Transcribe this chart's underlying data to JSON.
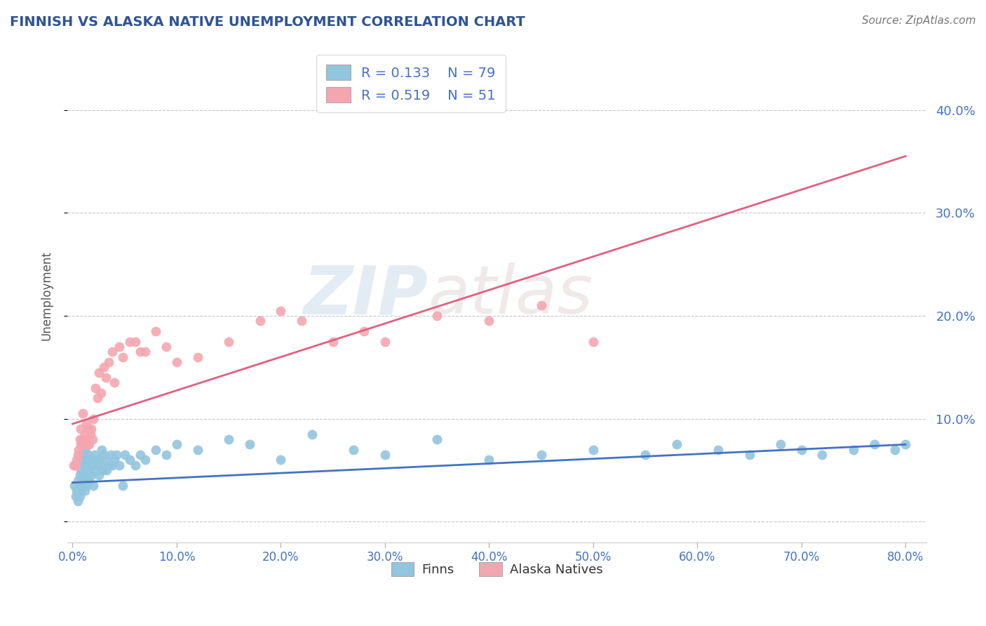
{
  "title": "FINNISH VS ALASKA NATIVE UNEMPLOYMENT CORRELATION CHART",
  "source": "Source: ZipAtlas.com",
  "ylabel": "Unemployment",
  "xlim": [
    -0.005,
    0.82
  ],
  "ylim": [
    -0.02,
    0.46
  ],
  "xticks": [
    0.0,
    0.1,
    0.2,
    0.3,
    0.4,
    0.5,
    0.6,
    0.7,
    0.8
  ],
  "yticks": [
    0.0,
    0.1,
    0.2,
    0.3,
    0.4
  ],
  "ytick_labels": [
    "",
    "10.0%",
    "20.0%",
    "30.0%",
    "40.0%"
  ],
  "xtick_labels": [
    "0.0%",
    "10.0%",
    "20.0%",
    "30.0%",
    "40.0%",
    "50.0%",
    "60.0%",
    "70.0%",
    "80.0%"
  ],
  "finns_color": "#92c5de",
  "alaska_color": "#f4a6b0",
  "finns_R": 0.133,
  "finns_N": 79,
  "alaska_R": 0.519,
  "alaska_N": 51,
  "finns_line_color": "#4472c4",
  "alaska_line_color": "#e06080",
  "watermark_zip": "ZIP",
  "watermark_atlas": "atlas",
  "title_color": "#2F5496",
  "axis_color": "#4472c4",
  "legend_text_color": "#333333",
  "grid_color": "#c8c8c8",
  "background_color": "#ffffff",
  "finns_line_y_start": 0.038,
  "finns_line_y_end": 0.075,
  "alaska_line_y_start": 0.095,
  "alaska_line_y_end": 0.355,
  "finns_x": [
    0.002,
    0.003,
    0.004,
    0.005,
    0.005,
    0.006,
    0.007,
    0.007,
    0.008,
    0.008,
    0.009,
    0.009,
    0.01,
    0.01,
    0.011,
    0.011,
    0.012,
    0.012,
    0.013,
    0.013,
    0.014,
    0.015,
    0.015,
    0.016,
    0.016,
    0.017,
    0.018,
    0.019,
    0.02,
    0.02,
    0.021,
    0.022,
    0.023,
    0.024,
    0.025,
    0.026,
    0.027,
    0.028,
    0.029,
    0.03,
    0.032,
    0.033,
    0.035,
    0.037,
    0.038,
    0.04,
    0.042,
    0.045,
    0.048,
    0.05,
    0.055,
    0.06,
    0.065,
    0.07,
    0.08,
    0.09,
    0.1,
    0.12,
    0.15,
    0.17,
    0.2,
    0.23,
    0.27,
    0.3,
    0.35,
    0.4,
    0.45,
    0.5,
    0.55,
    0.58,
    0.62,
    0.65,
    0.68,
    0.7,
    0.72,
    0.75,
    0.77,
    0.79,
    0.8
  ],
  "finns_y": [
    0.035,
    0.025,
    0.03,
    0.02,
    0.04,
    0.03,
    0.025,
    0.045,
    0.03,
    0.05,
    0.035,
    0.06,
    0.04,
    0.065,
    0.045,
    0.055,
    0.03,
    0.07,
    0.035,
    0.055,
    0.05,
    0.045,
    0.065,
    0.04,
    0.06,
    0.055,
    0.045,
    0.06,
    0.035,
    0.055,
    0.065,
    0.05,
    0.06,
    0.055,
    0.045,
    0.06,
    0.055,
    0.07,
    0.05,
    0.065,
    0.06,
    0.05,
    0.055,
    0.065,
    0.055,
    0.06,
    0.065,
    0.055,
    0.035,
    0.065,
    0.06,
    0.055,
    0.065,
    0.06,
    0.07,
    0.065,
    0.075,
    0.07,
    0.08,
    0.075,
    0.06,
    0.085,
    0.07,
    0.065,
    0.08,
    0.06,
    0.065,
    0.07,
    0.065,
    0.075,
    0.07,
    0.065,
    0.075,
    0.07,
    0.065,
    0.07,
    0.075,
    0.07,
    0.075
  ],
  "alaska_x": [
    0.001,
    0.003,
    0.004,
    0.005,
    0.006,
    0.007,
    0.008,
    0.008,
    0.009,
    0.01,
    0.01,
    0.011,
    0.012,
    0.013,
    0.014,
    0.015,
    0.016,
    0.017,
    0.018,
    0.019,
    0.02,
    0.022,
    0.024,
    0.025,
    0.027,
    0.03,
    0.032,
    0.035,
    0.038,
    0.04,
    0.045,
    0.048,
    0.055,
    0.06,
    0.065,
    0.07,
    0.08,
    0.09,
    0.1,
    0.12,
    0.15,
    0.18,
    0.2,
    0.22,
    0.25,
    0.28,
    0.3,
    0.35,
    0.4,
    0.45,
    0.5
  ],
  "alaska_y": [
    0.055,
    0.055,
    0.06,
    0.065,
    0.07,
    0.08,
    0.075,
    0.09,
    0.08,
    0.075,
    0.105,
    0.08,
    0.085,
    0.095,
    0.075,
    0.09,
    0.075,
    0.085,
    0.09,
    0.08,
    0.1,
    0.13,
    0.12,
    0.145,
    0.125,
    0.15,
    0.14,
    0.155,
    0.165,
    0.135,
    0.17,
    0.16,
    0.175,
    0.175,
    0.165,
    0.165,
    0.185,
    0.17,
    0.155,
    0.16,
    0.175,
    0.195,
    0.205,
    0.195,
    0.175,
    0.185,
    0.175,
    0.2,
    0.195,
    0.21,
    0.175
  ]
}
